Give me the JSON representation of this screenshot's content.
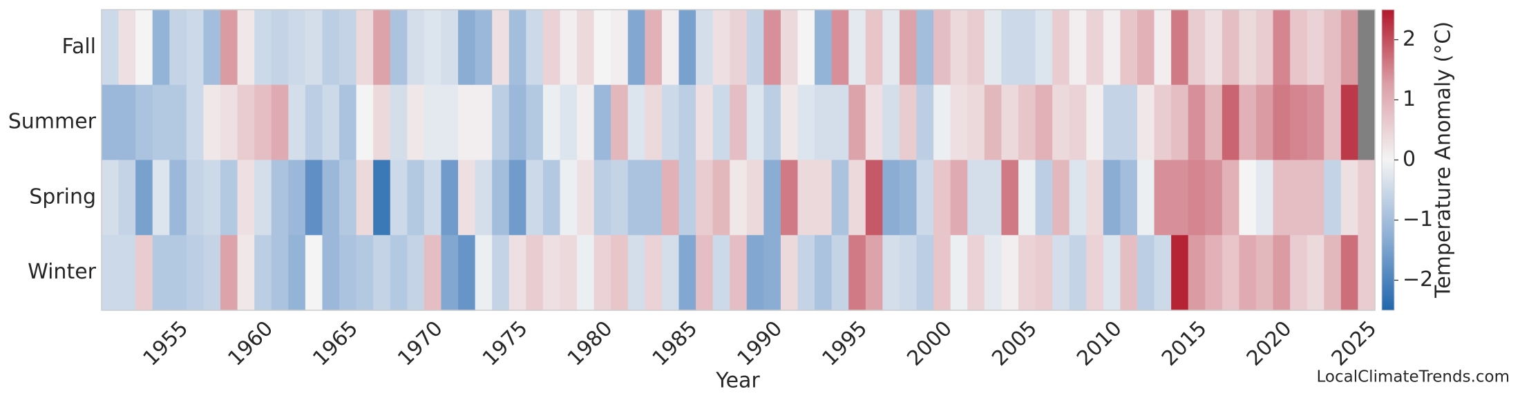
{
  "chart_data": {
    "type": "heatmap",
    "xlabel": "Year",
    "colorbar_label": "Temperature Anomaly (°C)",
    "source": "LocalClimateTrends.com",
    "x": [
      1951,
      1952,
      1953,
      1954,
      1955,
      1956,
      1957,
      1958,
      1959,
      1960,
      1961,
      1962,
      1963,
      1964,
      1965,
      1966,
      1967,
      1968,
      1969,
      1970,
      1971,
      1972,
      1973,
      1974,
      1975,
      1976,
      1977,
      1978,
      1979,
      1980,
      1981,
      1982,
      1983,
      1984,
      1985,
      1986,
      1987,
      1988,
      1989,
      1990,
      1991,
      1992,
      1993,
      1994,
      1995,
      1996,
      1997,
      1998,
      1999,
      2000,
      2001,
      2002,
      2003,
      2004,
      2005,
      2006,
      2007,
      2008,
      2009,
      2010,
      2011,
      2012,
      2013,
      2014,
      2015,
      2016,
      2017,
      2018,
      2019,
      2020,
      2021,
      2022,
      2023,
      2024,
      2025
    ],
    "xticks": [
      1955,
      1960,
      1965,
      1970,
      1975,
      1980,
      1985,
      1990,
      1995,
      2000,
      2005,
      2010,
      2015,
      2020,
      2025
    ],
    "rows": [
      "Fall",
      "Summer",
      "Spring",
      "Winter"
    ],
    "values": [
      [
        -0.5,
        0.3,
        0,
        -1.2,
        -0.6,
        -0.5,
        -1.0,
        1.3,
        0.2,
        -0.5,
        -0.6,
        -0.5,
        -0.4,
        -0.7,
        -0.6,
        0.4,
        1.2,
        -0.9,
        -0.4,
        -0.3,
        -0.4,
        -1.3,
        -1.1,
        0.3,
        -1.0,
        -0.5,
        0.5,
        0.1,
        0.4,
        0,
        0.1,
        -1.4,
        1.0,
        0.1,
        -1.5,
        -0.4,
        0.3,
        0.5,
        -0.6,
        1.4,
        0.4,
        0,
        -1.2,
        1.4,
        -0.2,
        0.7,
        -0.2,
        1.2,
        -1.0,
        0.8,
        0.4,
        0.6,
        -0.2,
        -0.5,
        -0.5,
        -0.3,
        0.6,
        0.1,
        0.5,
        0.1,
        0.7,
        1.0,
        0.1,
        1.6,
        0.6,
        0.3,
        0.8,
        0.4,
        0.6,
        1.5,
        0.7,
        0.5,
        0.8,
        1.3,
        null
      ],
      [
        -1.1,
        -1.1,
        -0.9,
        -0.8,
        -0.8,
        -0.5,
        0.2,
        0.3,
        0.6,
        0.8,
        1.1,
        -0.4,
        -0.7,
        -0.5,
        -0.9,
        0.0,
        0.4,
        -0.4,
        0.2,
        -0.2,
        -0.2,
        0.1,
        0.1,
        -0.7,
        -1.1,
        -0.8,
        -0.1,
        -0.3,
        0.1,
        -1.1,
        0.9,
        -0.3,
        0.4,
        -0.5,
        -0.7,
        0.3,
        -0.5,
        0.8,
        -0.3,
        -0.7,
        0.2,
        -0.3,
        -0.4,
        -0.4,
        1.2,
        0.3,
        -0.4,
        0.6,
        -0.7,
        -0.1,
        0.3,
        0.4,
        0.9,
        0.4,
        0.7,
        1.0,
        0.4,
        0.5,
        0.1,
        -0.6,
        -0.6,
        0.2,
        0.6,
        0.8,
        1.4,
        0.9,
        1.8,
        1.0,
        1.3,
        1.6,
        1.5,
        1.4,
        0.8,
        2.2,
        null
      ],
      [
        -0.4,
        -0.6,
        -1.5,
        -0.3,
        -1.1,
        -0.6,
        -0.5,
        -0.8,
        0.3,
        -0.4,
        -0.9,
        -1.1,
        -1.8,
        -1.1,
        -0.8,
        0.4,
        -2.2,
        -0.5,
        -0.8,
        -0.5,
        -1.6,
        0.3,
        -0.4,
        -1.0,
        -1.6,
        -0.5,
        -0.8,
        -0.1,
        0.3,
        -0.7,
        -0.6,
        -0.9,
        -0.9,
        1.0,
        -0.7,
        0.6,
        0.9,
        0.2,
        0.4,
        -1.3,
        1.6,
        0.4,
        0.4,
        -0.9,
        0.4,
        1.9,
        -1.3,
        -1.2,
        -0.5,
        0.7,
        1.1,
        -0.4,
        -0.4,
        1.6,
        -0.1,
        -0.7,
        0.9,
        -0.3,
        0.4,
        -1.3,
        -1.0,
        -0.1,
        1.4,
        1.4,
        1.5,
        1.4,
        1.0,
        0.0,
        -0.2,
        0.8,
        0.8,
        0.8,
        -0.6,
        0.3,
        0.6
      ],
      [
        -0.5,
        -0.5,
        0.6,
        -0.8,
        -0.8,
        -0.7,
        -0.6,
        1.2,
        0.2,
        -0.7,
        -0.9,
        -1.2,
        0.0,
        -1.1,
        -0.9,
        -0.8,
        -0.6,
        -0.8,
        -0.6,
        0.8,
        -1.4,
        -1.7,
        -0.1,
        -0.6,
        0.3,
        0.6,
        0.3,
        0.4,
        -0.1,
        0.5,
        0.7,
        -0.4,
        0.5,
        -0.4,
        -1.4,
        0.8,
        -0.5,
        0.8,
        -1.4,
        -1.3,
        0.4,
        -0.6,
        -0.9,
        -0.6,
        1.6,
        1.2,
        -0.4,
        -0.5,
        -0.7,
        0.7,
        -0.1,
        0.5,
        -0.2,
        0.1,
        0.5,
        0.6,
        -0.4,
        -0.6,
        0.5,
        -0.3,
        0.8,
        -0.7,
        -0.5,
        2.4,
        1.3,
        1.0,
        0.7,
        1.1,
        0.9,
        1.3,
        0.6,
        0.4,
        0.9,
        1.7,
        0.6
      ]
    ],
    "clim": [
      -2.5,
      2.5
    ],
    "cticks": [
      {
        "value": -2,
        "label": "−2"
      },
      {
        "value": -1,
        "label": "−1"
      },
      0,
      1,
      2
    ],
    "colormap": [
      "#2166ac",
      "#8fb0d6",
      "#f4f4f4",
      "#dca0a8",
      "#b2182b"
    ],
    "missing_color": "#808080"
  }
}
